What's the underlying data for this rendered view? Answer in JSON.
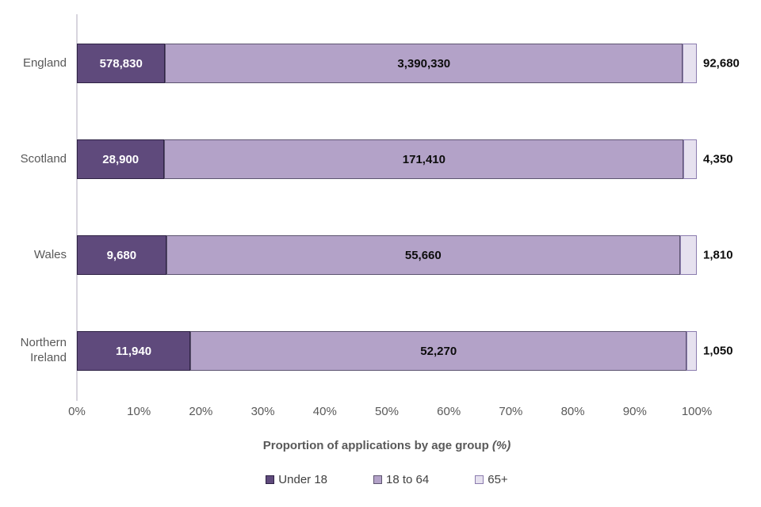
{
  "chart_data": {
    "type": "bar",
    "orientation": "horizontal",
    "stacked": true,
    "stacked_as": "percent",
    "title": "",
    "xlabel": "Proportion of applications by age group",
    "xlabel_suffix": "(%)",
    "xlim": [
      0,
      100
    ],
    "grid": false,
    "legend_position": "bottom",
    "categories": [
      "England",
      "Scotland",
      "Wales",
      "Northern Ireland"
    ],
    "x_ticks": [
      "0%",
      "10%",
      "20%",
      "30%",
      "40%",
      "50%",
      "60%",
      "70%",
      "80%",
      "90%",
      "100%"
    ],
    "series": [
      {
        "name": "Under 18",
        "values": [
          578830,
          28900,
          9680,
          11940
        ],
        "value_labels": [
          "578,830",
          "28,900",
          "9,680",
          "11,940"
        ],
        "fill": "#5f4a7c",
        "border": "#2e2244",
        "label_color": "#ffffff",
        "label_placement": "inside"
      },
      {
        "name": "18 to 64",
        "values": [
          3390330,
          171410,
          55660,
          52270
        ],
        "value_labels": [
          "3,390,330",
          "171,410",
          "55,660",
          "52,270"
        ],
        "fill": "#b3a2c8",
        "border": "#5d5470",
        "label_color": "#0d0d0d",
        "label_placement": "inside"
      },
      {
        "name": "65+",
        "values": [
          92680,
          4350,
          1810,
          1050
        ],
        "value_labels": [
          "92,680",
          "4,350",
          "1,810",
          "1,050"
        ],
        "fill": "#e6e1ef",
        "border": "#8b7cae",
        "label_color": "#0d0d0d",
        "label_placement": "outside"
      }
    ]
  },
  "axis": {
    "line_color": "#d8d5de",
    "text_color": "#595959"
  }
}
